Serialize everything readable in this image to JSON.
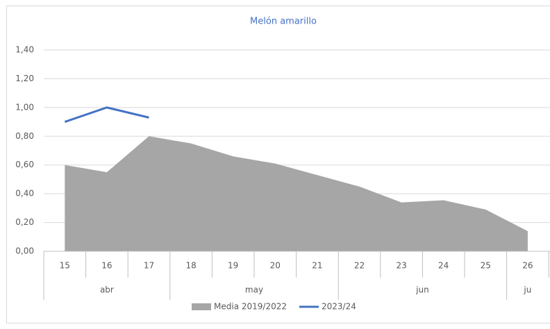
{
  "chart_data": {
    "type": "area_line",
    "title": "Melón amarillo",
    "categories": [
      "15",
      "16",
      "17",
      "18",
      "19",
      "20",
      "21",
      "22",
      "23",
      "24",
      "25",
      "26"
    ],
    "month_groups": [
      {
        "label": "abr",
        "span": 3
      },
      {
        "label": "may",
        "span": 4
      },
      {
        "label": "jun",
        "span": 4
      },
      {
        "label": "ju",
        "span": 1
      }
    ],
    "series": [
      {
        "name": "Media 2019/2022",
        "kind": "area",
        "color": "#a6a6a6",
        "values": [
          0.6,
          0.55,
          0.8,
          0.75,
          0.66,
          0.61,
          0.53,
          0.45,
          0.34,
          0.355,
          0.29,
          0.14
        ]
      },
      {
        "name": "2023/24",
        "kind": "line",
        "color": "#4472c4",
        "values": [
          0.9,
          1.0,
          0.93,
          null,
          null,
          null,
          null,
          null,
          null,
          null,
          null,
          null
        ]
      }
    ],
    "ylim": [
      0,
      1.4
    ],
    "yticks": [
      {
        "value": 0,
        "label": "0,00"
      },
      {
        "value": 0.2,
        "label": "0,20"
      },
      {
        "value": 0.4,
        "label": "0,40"
      },
      {
        "value": 0.6,
        "label": "0,60"
      },
      {
        "value": 0.8,
        "label": "0,80"
      },
      {
        "value": 1.0,
        "label": "1,00"
      },
      {
        "value": 1.2,
        "label": "1,20"
      },
      {
        "value": 1.4,
        "label": "1,40"
      }
    ],
    "grid": true,
    "legend": "bottom"
  }
}
